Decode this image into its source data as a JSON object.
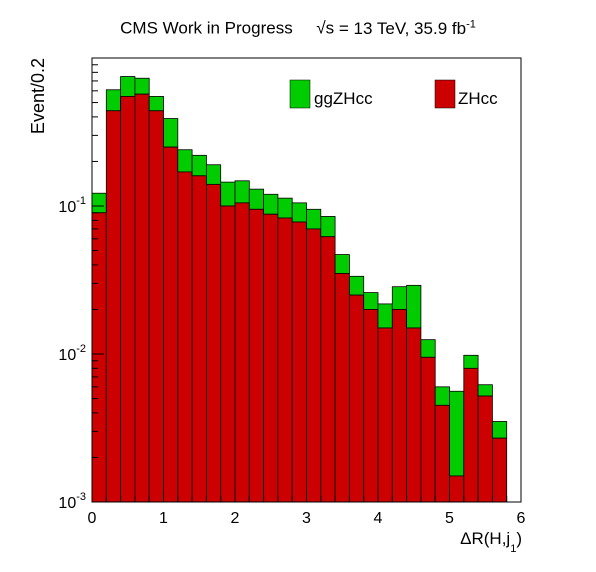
{
  "title": {
    "experiment": "CMS Work in Progress",
    "sqrt_symbol": "√s",
    "energy": "= 13 TeV, 35.9 fb",
    "lumi_exponent": "-1"
  },
  "chart_data": {
    "type": "bar",
    "stacked": true,
    "xlabel": "ΔR(H,j",
    "xlabel_subscript": "1",
    "xlabel_close": ")",
    "ylabel": "Event/0.2",
    "xlim": [
      0,
      6
    ],
    "ylim": [
      0.001,
      1.0
    ],
    "yscale": "log",
    "xticks": [
      "0",
      "1",
      "2",
      "3",
      "4",
      "5",
      "6"
    ],
    "yticks": [
      {
        "base": "10",
        "exp": "-3"
      },
      {
        "base": "10",
        "exp": "-2"
      },
      {
        "base": "10",
        "exp": "-1"
      }
    ],
    "legend_position": "top",
    "bin_edges": [
      0.0,
      0.2,
      0.4,
      0.6,
      0.8,
      1.0,
      1.2,
      1.4,
      1.6,
      1.8,
      2.0,
      2.2,
      2.4,
      2.6,
      2.8,
      3.0,
      3.2,
      3.4,
      3.6,
      3.8,
      4.0,
      4.2,
      4.4,
      4.6,
      4.8,
      5.0,
      5.2,
      5.4,
      5.6,
      5.8
    ],
    "series": [
      {
        "name": "ZHcc",
        "color": "#cc0000",
        "values": [
          0.09,
          0.44,
          0.55,
          0.57,
          0.44,
          0.25,
          0.17,
          0.16,
          0.14,
          0.1,
          0.105,
          0.095,
          0.088,
          0.083,
          0.078,
          0.07,
          0.062,
          0.035,
          0.025,
          0.02,
          0.015,
          0.02,
          0.015,
          0.0095,
          0.0045,
          0.0015,
          0.008,
          0.0052,
          0.0027
        ]
      },
      {
        "name": "ggZHcc",
        "color": "#00cc00",
        "values": [
          0.032,
          0.17,
          0.2,
          0.16,
          0.11,
          0.14,
          0.07,
          0.06,
          0.05,
          0.045,
          0.043,
          0.035,
          0.032,
          0.03,
          0.027,
          0.025,
          0.023,
          0.012,
          0.0085,
          0.006,
          0.0068,
          0.0085,
          0.0141,
          0.003,
          0.0015,
          0.0041,
          0.0018,
          0.001,
          0.0008
        ]
      }
    ]
  }
}
